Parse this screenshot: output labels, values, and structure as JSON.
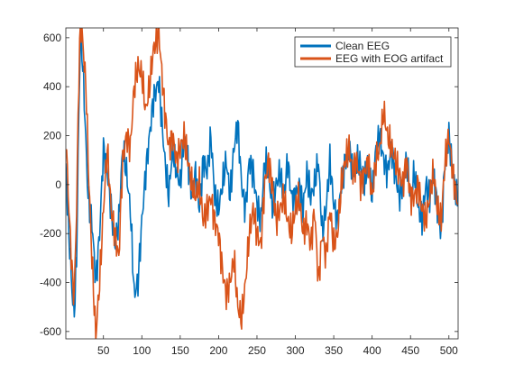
{
  "chart_data": {
    "type": "line",
    "title": "",
    "xlabel": "",
    "ylabel": "",
    "xlim": [
      1,
      512
    ],
    "ylim": [
      -630,
      640
    ],
    "xticks": [
      50,
      100,
      150,
      200,
      250,
      300,
      350,
      400,
      450,
      500
    ],
    "yticks": [
      -600,
      -400,
      -200,
      0,
      200,
      400,
      600
    ],
    "grid": false,
    "legend": {
      "location": "top-right"
    },
    "series": [
      {
        "name": "Clean EEG",
        "color": "#0072BD",
        "x": [
          1,
          5,
          10,
          12,
          15,
          18,
          20,
          22,
          25,
          28,
          30,
          35,
          40,
          45,
          50,
          55,
          60,
          65,
          70,
          75,
          80,
          85,
          88,
          90,
          95,
          100,
          105,
          110,
          115,
          120,
          122,
          125,
          130,
          135,
          140,
          145,
          150,
          155,
          160,
          165,
          170,
          175,
          180,
          185,
          190,
          195,
          200,
          205,
          210,
          215,
          220,
          225,
          230,
          235,
          240,
          245,
          250,
          255,
          260,
          265,
          270,
          275,
          280,
          285,
          290,
          295,
          300,
          305,
          310,
          315,
          320,
          325,
          330,
          335,
          340,
          345,
          350,
          355,
          360,
          365,
          370,
          375,
          380,
          385,
          390,
          395,
          400,
          405,
          410,
          415,
          420,
          425,
          430,
          435,
          440,
          445,
          450,
          455,
          460,
          465,
          470,
          475,
          480,
          485,
          490,
          495,
          500,
          505,
          510,
          512
        ],
        "y": [
          60,
          -200,
          -480,
          -520,
          -300,
          300,
          600,
          550,
          350,
          100,
          -50,
          -150,
          -400,
          -200,
          150,
          50,
          -100,
          -250,
          -150,
          150,
          50,
          -100,
          -300,
          -450,
          -400,
          -150,
          50,
          200,
          350,
          400,
          430,
          300,
          100,
          -50,
          150,
          50,
          0,
          200,
          100,
          -50,
          50,
          -100,
          100,
          50,
          200,
          -50,
          -100,
          0,
          100,
          -50,
          150,
          250,
          0,
          -100,
          100,
          50,
          -80,
          -150,
          100,
          50,
          -100,
          0,
          50,
          -50,
          100,
          -50,
          -50,
          0,
          -100,
          50,
          -50,
          0,
          100,
          -200,
          -100,
          100,
          -80,
          -150,
          0,
          100,
          150,
          50,
          100,
          80,
          0,
          100,
          -50,
          150,
          200,
          100,
          50,
          150,
          50,
          -50,
          0,
          100,
          -50,
          50,
          -100,
          -150,
          0,
          -50,
          50,
          -100,
          -200,
          100,
          200,
          50,
          -50,
          -80
        ]
      },
      {
        "name": "EEG with EOG artifact",
        "color": "#D95319",
        "x": [
          1,
          5,
          10,
          12,
          15,
          18,
          20,
          22,
          25,
          28,
          30,
          35,
          40,
          45,
          50,
          55,
          60,
          65,
          70,
          75,
          80,
          85,
          90,
          95,
          100,
          105,
          110,
          115,
          120,
          122,
          125,
          130,
          135,
          140,
          145,
          150,
          155,
          160,
          165,
          170,
          175,
          180,
          185,
          190,
          195,
          200,
          205,
          210,
          215,
          220,
          225,
          230,
          235,
          240,
          245,
          250,
          255,
          260,
          265,
          270,
          275,
          280,
          285,
          290,
          295,
          300,
          305,
          310,
          315,
          320,
          325,
          330,
          335,
          340,
          345,
          350,
          355,
          360,
          365,
          370,
          375,
          380,
          385,
          390,
          395,
          400,
          405,
          410,
          415,
          420,
          425,
          430,
          435,
          440,
          445,
          450,
          455,
          460,
          465,
          470,
          475,
          480,
          485,
          490,
          495,
          500,
          505,
          510,
          512
        ],
        "y": [
          200,
          -100,
          -400,
          -450,
          -100,
          450,
          640,
          620,
          500,
          350,
          100,
          -300,
          -620,
          -400,
          -100,
          150,
          -100,
          -200,
          -300,
          100,
          200,
          150,
          400,
          480,
          450,
          300,
          400,
          550,
          600,
          630,
          500,
          300,
          150,
          200,
          100,
          150,
          200,
          100,
          0,
          -50,
          0,
          -150,
          -100,
          -50,
          -150,
          -200,
          -350,
          -450,
          -400,
          -300,
          -500,
          -550,
          -400,
          -200,
          -100,
          -200,
          -250,
          0,
          100,
          0,
          -150,
          -100,
          -50,
          -150,
          -200,
          -100,
          -50,
          -200,
          -150,
          -250,
          -100,
          -400,
          -200,
          -300,
          -100,
          -250,
          -200,
          0,
          100,
          150,
          50,
          100,
          0,
          50,
          100,
          -50,
          100,
          150,
          300,
          200,
          150,
          100,
          50,
          0,
          100,
          -50,
          -50,
          0,
          -100,
          -150,
          -50,
          50,
          -100,
          -150,
          100,
          200,
          50,
          -50,
          -80
        ]
      }
    ]
  }
}
